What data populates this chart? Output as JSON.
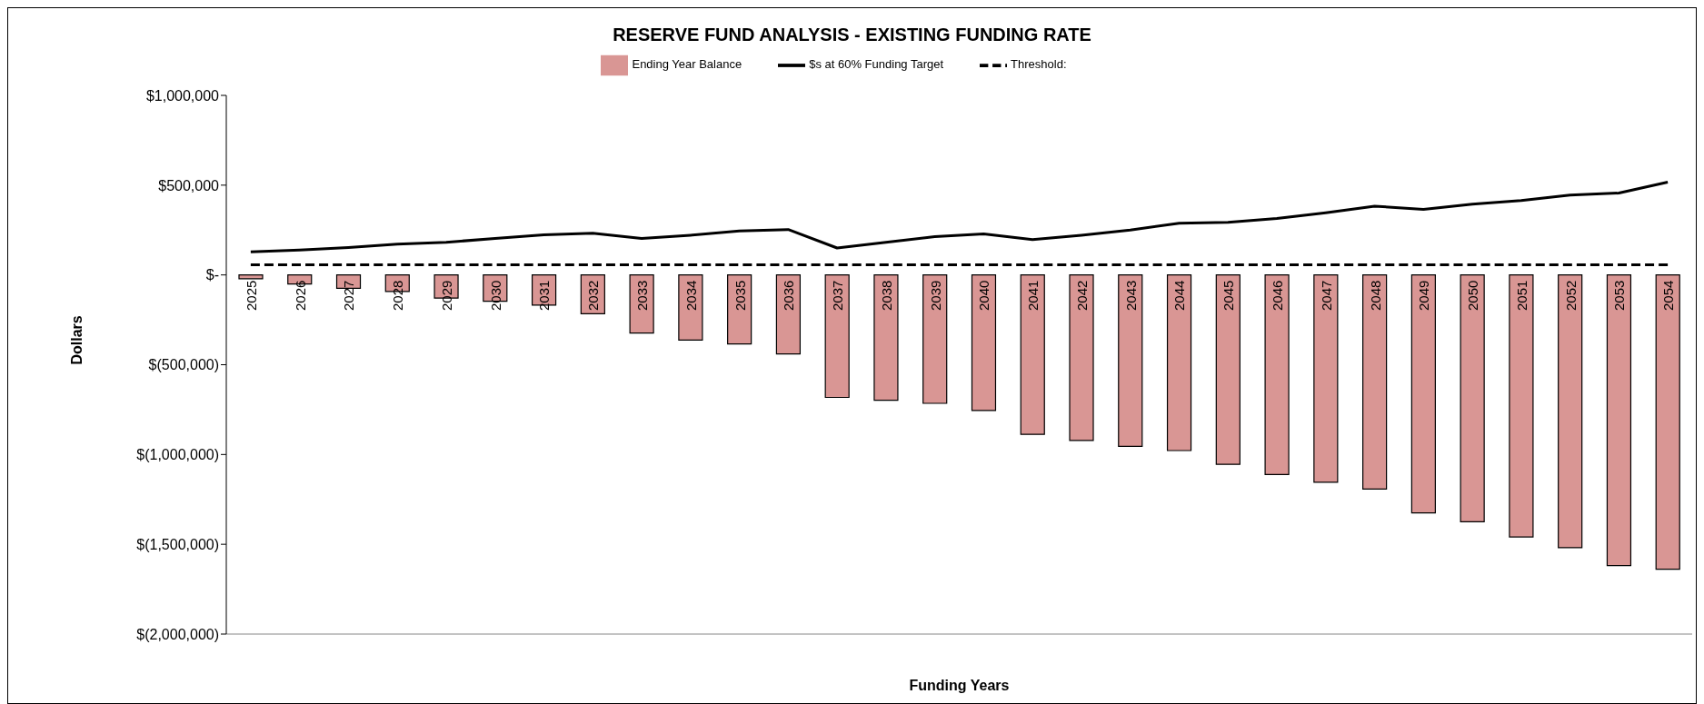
{
  "chart_data": {
    "type": "bar",
    "title": "RESERVE FUND ANALYSIS - EXISTING FUNDING RATE",
    "xlabel": "Funding Years",
    "ylabel": "Dollars",
    "categories": [
      "2025",
      "2026",
      "2027",
      "2028",
      "2029",
      "2030",
      "2031",
      "2032",
      "2033",
      "2034",
      "2035",
      "2036",
      "2037",
      "2038",
      "2039",
      "2040",
      "2041",
      "2042",
      "2043",
      "2044",
      "2045",
      "2046",
      "2047",
      "2048",
      "2049",
      "2050",
      "2051",
      "2052",
      "2053",
      "2054"
    ],
    "series": [
      {
        "name": "Ending Year Balance",
        "color": "#d99694",
        "values": [
          -21000,
          -50000,
          -74000,
          -92000,
          -129000,
          -147000,
          -168000,
          -216000,
          -324000,
          -363000,
          -384000,
          -440000,
          -682000,
          -698000,
          -715000,
          -755000,
          -888000,
          -922000,
          -955000,
          -978000,
          -1055000,
          -1112000,
          -1155000,
          -1192000,
          -1325000,
          -1375000,
          -1459000,
          -1519000,
          -1619000,
          -1639000
        ]
      },
      {
        "name": "$s at 60% Funding Target",
        "type": "line",
        "color": "#000000",
        "line_style": "solid",
        "values": [
          129000,
          139000,
          153000,
          171000,
          182000,
          203000,
          224000,
          232000,
          203000,
          221000,
          245000,
          253000,
          150000,
          182000,
          213000,
          229000,
          197000,
          221000,
          250000,
          288000,
          293000,
          314000,
          346000,
          383000,
          365000,
          394000,
          415000,
          445000,
          456000,
          517000
        ]
      },
      {
        "name": "Threshold:",
        "type": "line",
        "color": "#000000",
        "line_style": "dashed",
        "values": [
          57000,
          57000,
          57000,
          57000,
          57000,
          57000,
          57000,
          57000,
          57000,
          57000,
          57000,
          57000,
          57000,
          57000,
          57000,
          57000,
          57000,
          57000,
          57000,
          57000,
          57000,
          57000,
          57000,
          57000,
          57000,
          57000,
          57000,
          57000,
          57000,
          57000
        ]
      }
    ],
    "ylim": [
      -2000000,
      1000000
    ],
    "yticks": [
      {
        "value": -2000000,
        "label": "$(2,000,000)"
      },
      {
        "value": -1500000,
        "label": "$(1,500,000)"
      },
      {
        "value": -1000000,
        "label": "$(1,000,000)"
      },
      {
        "value": -500000,
        "label": "$(500,000)"
      },
      {
        "value": 0,
        "label": "$-"
      },
      {
        "value": 500000,
        "label": "$500,000"
      },
      {
        "value": 1000000,
        "label": "$1,000,000"
      }
    ],
    "grid": false,
    "legend": "top",
    "marker": "none"
  }
}
